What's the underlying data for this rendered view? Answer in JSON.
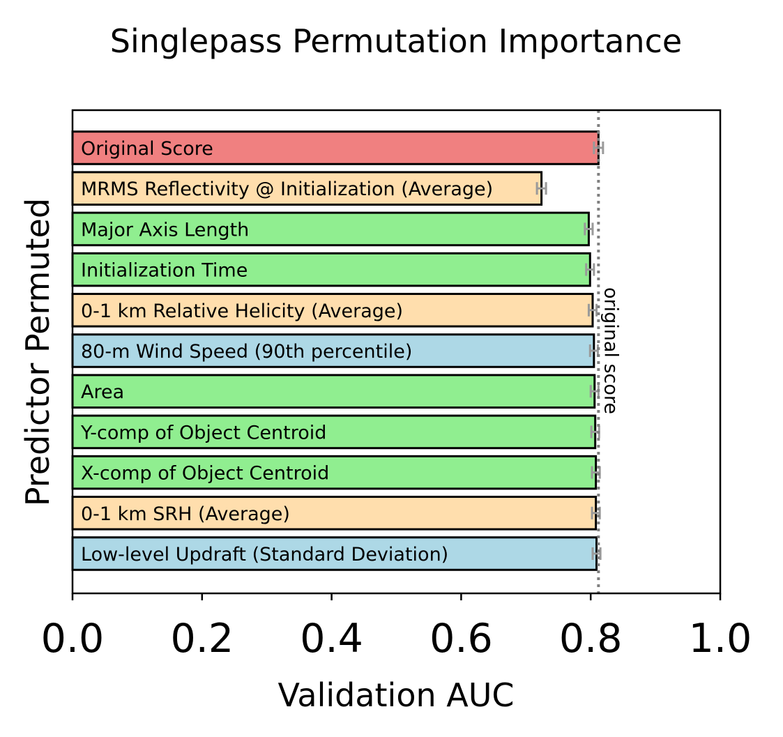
{
  "chart_data": {
    "type": "bar",
    "orientation": "horizontal",
    "title": "Singlepass Permutation Importance",
    "xlabel": "Validation AUC",
    "ylabel": "Predictor Permuted",
    "xlim": [
      0,
      1.0
    ],
    "xticks": [
      {
        "value": 0.0,
        "label": "0.0"
      },
      {
        "value": 0.2,
        "label": "0.2"
      },
      {
        "value": 0.4,
        "label": "0.4"
      },
      {
        "value": 0.6,
        "label": "0.6"
      },
      {
        "value": 0.8,
        "label": "0.8"
      },
      {
        "value": 1.0,
        "label": "1.0"
      }
    ],
    "grid": false,
    "reference_line": {
      "value": 0.812,
      "label": "original score",
      "color": "#808080",
      "style": "dotted"
    },
    "bars": [
      {
        "label": "Original Score",
        "value": 0.812,
        "error": 0.007,
        "color": "#f08080"
      },
      {
        "label": "MRMS Reflectivity @ Initialization (Average)",
        "value": 0.724,
        "error": 0.007,
        "color": "#ffdead"
      },
      {
        "label": "Major Axis Length",
        "value": 0.797,
        "error": 0.006,
        "color": "#90ee90"
      },
      {
        "label": "Initialization Time",
        "value": 0.799,
        "error": 0.006,
        "color": "#90ee90"
      },
      {
        "label": "0-1 km Relative Helicity (Average)",
        "value": 0.803,
        "error": 0.006,
        "color": "#ffdead"
      },
      {
        "label": "80-m Wind Speed (90th percentile)",
        "value": 0.805,
        "error": 0.006,
        "color": "#add8e6"
      },
      {
        "label": "Area",
        "value": 0.806,
        "error": 0.006,
        "color": "#90ee90"
      },
      {
        "label": "Y-comp of Object Centroid",
        "value": 0.807,
        "error": 0.006,
        "color": "#90ee90"
      },
      {
        "label": "X-comp of Object Centroid",
        "value": 0.808,
        "error": 0.006,
        "color": "#90ee90"
      },
      {
        "label": "0-1 km SRH (Average)",
        "value": 0.808,
        "error": 0.006,
        "color": "#ffdead"
      },
      {
        "label": "Low-level Updraft (Standard Deviation)",
        "value": 0.809,
        "error": 0.006,
        "color": "#add8e6"
      }
    ]
  }
}
